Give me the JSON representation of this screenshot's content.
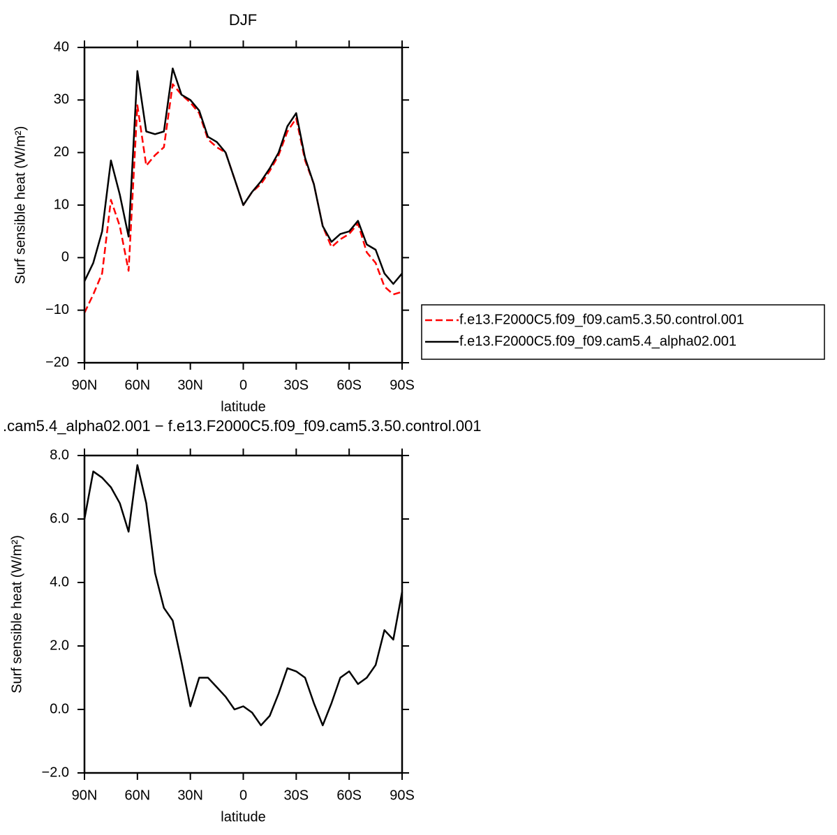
{
  "chart_data": [
    {
      "type": "line",
      "title": "DJF",
      "xlabel": "latitude",
      "ylabel": "Surf sensible heat (W/m²)",
      "x": [
        90,
        85,
        80,
        75,
        70,
        65,
        60,
        55,
        50,
        45,
        40,
        35,
        30,
        25,
        20,
        15,
        10,
        5,
        0,
        -5,
        -10,
        -15,
        -20,
        -25,
        -30,
        -35,
        -40,
        -45,
        -50,
        -55,
        -60,
        -65,
        -70,
        -75,
        -80,
        -85,
        -90
      ],
      "series": [
        {
          "name": "f.e13.F2000C5.f09_f09.cam5.3.50.control.001",
          "color": "#ff0000",
          "dash": "dashed",
          "values": [
            -10.5,
            -7,
            -3,
            11,
            6,
            -2.5,
            29,
            17.5,
            19.5,
            21,
            33,
            31,
            29.5,
            27.5,
            22.5,
            21,
            20,
            15,
            10,
            12.5,
            14,
            16.5,
            19.5,
            24,
            26.5,
            18.5,
            14,
            6,
            2,
            3.5,
            4.5,
            6.5,
            1,
            -1,
            -5.5,
            -7,
            -6.5
          ]
        },
        {
          "name": "f.e13.F2000C5.f09_f09.cam5.4_alpha02.001",
          "color": "#000000",
          "dash": "solid",
          "values": [
            -4.5,
            -1,
            5,
            18.5,
            12,
            4,
            35.5,
            24,
            23.5,
            24,
            36,
            31,
            30,
            28,
            23,
            22,
            20,
            15,
            10,
            12.5,
            14.5,
            17,
            20,
            25,
            27.5,
            19,
            14,
            6,
            3,
            4.5,
            5,
            7,
            2.5,
            1.5,
            -3,
            -5,
            -3
          ]
        }
      ],
      "xlim": [
        90,
        -90
      ],
      "xticks": [
        {
          "value": 90,
          "label": "90N"
        },
        {
          "value": 60,
          "label": "60N"
        },
        {
          "value": 30,
          "label": "30N"
        },
        0,
        {
          "value": -30,
          "label": "30S"
        },
        {
          "value": -60,
          "label": "60S"
        },
        {
          "value": -90,
          "label": "90S"
        }
      ],
      "ylim": [
        -20,
        40
      ],
      "yticks": [
        {
          "value": -20,
          "label": "−20"
        },
        {
          "value": -10,
          "label": "−10"
        },
        0,
        10,
        20,
        30,
        40
      ],
      "legend": "right"
    },
    {
      "type": "line",
      "title": ".cam5.4_alpha02.001 − f.e13.F2000C5.f09_f09.cam5.3.50.control.001",
      "xlabel": "latitude",
      "ylabel": "Surf sensible heat (W/m²)",
      "x": [
        90,
        85,
        80,
        75,
        70,
        65,
        60,
        55,
        50,
        45,
        40,
        35,
        30,
        25,
        20,
        15,
        10,
        5,
        0,
        -5,
        -10,
        -15,
        -20,
        -25,
        -30,
        -35,
        -40,
        -45,
        -50,
        -55,
        -60,
        -65,
        -70,
        -75,
        -80,
        -85,
        -90
      ],
      "color": "#000000",
      "values": [
        6.0,
        7.5,
        7.3,
        7.0,
        6.5,
        5.6,
        7.7,
        6.5,
        4.3,
        3.2,
        2.8,
        1.5,
        0.1,
        1.0,
        1.0,
        0.7,
        0.4,
        0.0,
        0.1,
        -0.1,
        -0.5,
        -0.2,
        0.5,
        1.3,
        1.2,
        1.0,
        0.2,
        -0.5,
        0.2,
        1.0,
        1.2,
        0.8,
        1.0,
        1.4,
        2.5,
        2.2,
        3.7
      ],
      "xlim": [
        90,
        -90
      ],
      "xticks": [
        {
          "value": 90,
          "label": "90N"
        },
        {
          "value": 60,
          "label": "60N"
        },
        {
          "value": 30,
          "label": "30N"
        },
        0,
        {
          "value": -30,
          "label": "30S"
        },
        {
          "value": -60,
          "label": "60S"
        },
        {
          "value": -90,
          "label": "90S"
        }
      ],
      "ylim": [
        -2,
        8
      ],
      "yticks": [
        {
          "value": -2,
          "label": "−2.0"
        },
        {
          "value": 0,
          "label": "0.0"
        },
        {
          "value": 2,
          "label": "2.0"
        },
        {
          "value": 4,
          "label": "4.0"
        },
        {
          "value": 6,
          "label": "6.0"
        },
        {
          "value": 8,
          "label": "8.0"
        }
      ]
    }
  ]
}
